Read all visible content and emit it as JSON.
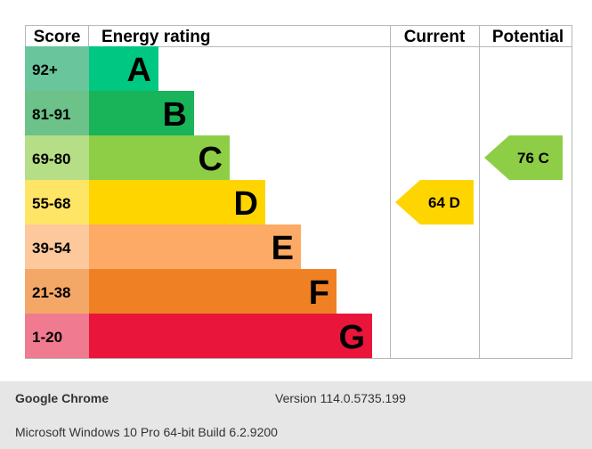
{
  "chart_data": {
    "type": "bar",
    "headers": {
      "score": "Score",
      "rating": "Energy rating",
      "current": "Current",
      "potential": "Potential"
    },
    "bands": [
      {
        "range": "92+",
        "letter": "A",
        "band_color": "#00c781",
        "score_color": "#69c59b"
      },
      {
        "range": "81-91",
        "letter": "B",
        "band_color": "#19b459",
        "score_color": "#6cc288"
      },
      {
        "range": "69-80",
        "letter": "C",
        "band_color": "#8dce46",
        "score_color": "#b5de86"
      },
      {
        "range": "55-68",
        "letter": "D",
        "band_color": "#ffd500",
        "score_color": "#ffe566"
      },
      {
        "range": "39-54",
        "letter": "E",
        "band_color": "#fcaa65",
        "score_color": "#fdc89c"
      },
      {
        "range": "21-38",
        "letter": "F",
        "band_color": "#ef8023",
        "score_color": "#f4a867"
      },
      {
        "range": "1-20",
        "letter": "G",
        "band_color": "#e9153b",
        "score_color": "#f07a8f"
      }
    ],
    "current": {
      "value": 64,
      "letter": "D",
      "label": "64  D",
      "color": "#ffd500"
    },
    "potential": {
      "value": 76,
      "letter": "C",
      "label": "76  C",
      "color": "#8dce46"
    }
  },
  "footer": {
    "app": "Google Chrome",
    "version": "Version 114.0.5735.199",
    "os": "Microsoft Windows 10 Pro 64-bit Build 6.2.9200"
  }
}
